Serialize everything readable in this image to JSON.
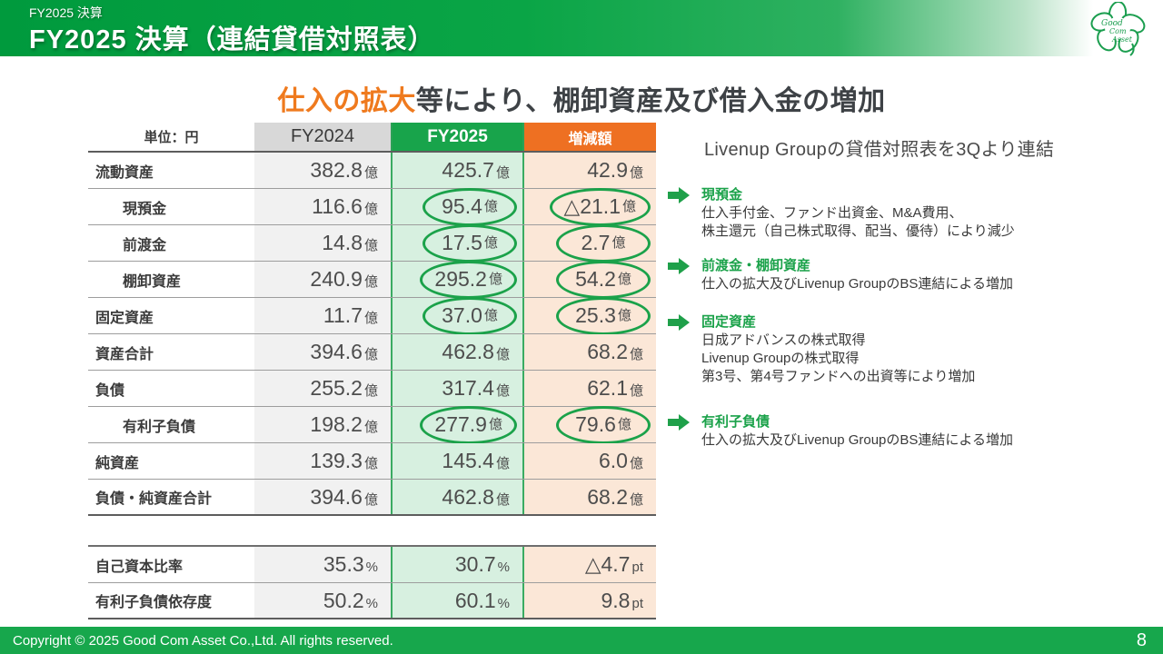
{
  "header": {
    "eyebrow": "FY2025 決算",
    "title": "FY2025 決算（連結貸借対照表）",
    "logo_text": [
      "Good",
      "Com",
      "Asset"
    ]
  },
  "slide_title": {
    "highlight": "仕入の拡大",
    "rest": "等により、棚卸資産及び借入金の増加",
    "highlight_color": "#ef7a1e"
  },
  "table": {
    "unit_label": "単位：円",
    "columns": [
      "FY2024",
      "FY2025",
      "増減額"
    ],
    "rows": [
      {
        "label": "流動資産",
        "indent": false,
        "circled": false,
        "fy2024": {
          "v": "382.8",
          "u": "億"
        },
        "fy2025": {
          "v": "425.7",
          "u": "億"
        },
        "delta": {
          "v": "42.9",
          "u": "億"
        }
      },
      {
        "label": "現預金",
        "indent": true,
        "circled": true,
        "fy2024": {
          "v": "116.6",
          "u": "億"
        },
        "fy2025": {
          "v": "95.4",
          "u": "億"
        },
        "delta": {
          "v": "△21.1",
          "u": "億"
        }
      },
      {
        "label": "前渡金",
        "indent": true,
        "circled": true,
        "fy2024": {
          "v": "14.8",
          "u": "億"
        },
        "fy2025": {
          "v": "17.5",
          "u": "億"
        },
        "delta": {
          "v": "2.7",
          "u": "億"
        }
      },
      {
        "label": "棚卸資産",
        "indent": true,
        "circled": true,
        "fy2024": {
          "v": "240.9",
          "u": "億"
        },
        "fy2025": {
          "v": "295.2",
          "u": "億"
        },
        "delta": {
          "v": "54.2",
          "u": "億"
        }
      },
      {
        "label": "固定資産",
        "indent": false,
        "circled": true,
        "fy2024": {
          "v": "11.7",
          "u": "億"
        },
        "fy2025": {
          "v": "37.0",
          "u": "億"
        },
        "delta": {
          "v": "25.3",
          "u": "億"
        }
      },
      {
        "label": "資産合計",
        "indent": false,
        "circled": false,
        "fy2024": {
          "v": "394.6",
          "u": "億"
        },
        "fy2025": {
          "v": "462.8",
          "u": "億"
        },
        "delta": {
          "v": "68.2",
          "u": "億"
        }
      },
      {
        "label": "負債",
        "indent": false,
        "circled": false,
        "fy2024": {
          "v": "255.2",
          "u": "億"
        },
        "fy2025": {
          "v": "317.4",
          "u": "億"
        },
        "delta": {
          "v": "62.1",
          "u": "億"
        }
      },
      {
        "label": "有利子負債",
        "indent": true,
        "circled": true,
        "fy2024": {
          "v": "198.2",
          "u": "億"
        },
        "fy2025": {
          "v": "277.9",
          "u": "億"
        },
        "delta": {
          "v": "79.6",
          "u": "億"
        }
      },
      {
        "label": "純資産",
        "indent": false,
        "circled": false,
        "fy2024": {
          "v": "139.3",
          "u": "億"
        },
        "fy2025": {
          "v": "145.4",
          "u": "億"
        },
        "delta": {
          "v": "6.0",
          "u": "億"
        }
      },
      {
        "label": "負債・純資産合計",
        "indent": false,
        "circled": false,
        "fy2024": {
          "v": "394.6",
          "u": "億"
        },
        "fy2025": {
          "v": "462.8",
          "u": "億"
        },
        "delta": {
          "v": "68.2",
          "u": "億"
        }
      }
    ]
  },
  "ratio_table": {
    "rows": [
      {
        "label": "自己資本比率",
        "fy2024": {
          "v": "35.3",
          "u": "%"
        },
        "fy2025": {
          "v": "30.7",
          "u": "%"
        },
        "delta": {
          "v": "△4.7",
          "u": "pt"
        }
      },
      {
        "label": "有利子負債依存度",
        "fy2024": {
          "v": "50.2",
          "u": "%"
        },
        "fy2025": {
          "v": "60.1",
          "u": "%"
        },
        "delta": {
          "v": "9.8",
          "u": "pt"
        }
      }
    ]
  },
  "notes": {
    "heading": "Livenup Groupの貸借対照表を3Qより連結",
    "items": [
      {
        "title": "現預金",
        "lines": [
          "仕入手付金、ファンド出資金、M&A費用、",
          "株主還元（自己株式取得、配当、優待）により減少"
        ]
      },
      {
        "title": "前渡金・棚卸資産",
        "lines": [
          "仕入の拡大及びLivenup GroupのBS連結による増加"
        ]
      },
      {
        "title": "固定資産",
        "lines": [
          "日成アドバンスの株式取得",
          "Livenup Groupの株式取得",
          "第3号、第4号ファンドへの出資等により増加"
        ]
      },
      {
        "title": "有利子負債",
        "lines": [
          "仕入の拡大及びLivenup GroupのBS連結による増加"
        ]
      }
    ]
  },
  "footer": {
    "copyright": "Copyright © 2025 Good Com Asset Co.,Ltd. All rights reserved.",
    "page": "8"
  },
  "colors": {
    "accent_green": "#18a44b",
    "accent_orange": "#ee7022",
    "light_green": "#d7f0e0",
    "light_orange": "#fbe7d7",
    "circle_green": "#1ba24a",
    "title_orange": "#ef7a1e"
  }
}
